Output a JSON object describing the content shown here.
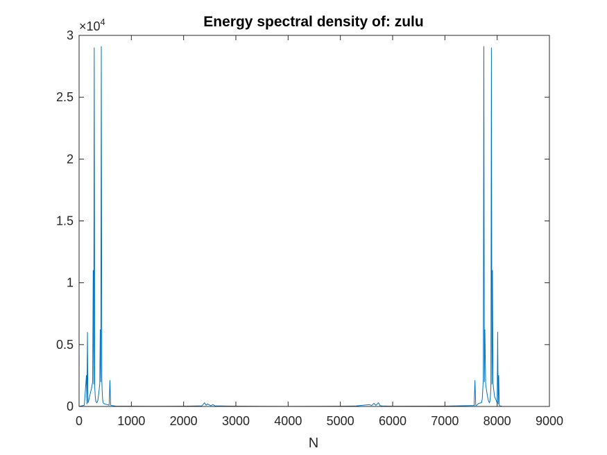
{
  "chart_data": {
    "type": "line",
    "title": "Energy spectral density of: zulu",
    "xlabel": "N",
    "ylabel": "",
    "xlim": [
      0,
      9000
    ],
    "ylim": [
      0,
      30000
    ],
    "xticks": [
      0,
      1000,
      2000,
      3000,
      4000,
      5000,
      6000,
      7000,
      8000,
      9000
    ],
    "xtick_labels": [
      "0",
      "1000",
      "2000",
      "3000",
      "4000",
      "5000",
      "6000",
      "7000",
      "8000",
      "9000"
    ],
    "yticks": [
      0,
      5000,
      10000,
      15000,
      20000,
      25000,
      30000
    ],
    "ytick_labels": [
      "0",
      "0.5",
      "1",
      "1.5",
      "2",
      "2.5",
      "3"
    ],
    "y_exponent_label": "×10",
    "y_exponent": "4",
    "grid": false,
    "line_color": "#0072bd",
    "series": [
      {
        "x": [
          0,
          100,
          140,
          150,
          160,
          170,
          180,
          200,
          240,
          260,
          270,
          280,
          290,
          300,
          310,
          320,
          340,
          360,
          380,
          395,
          405,
          415,
          425,
          435,
          440,
          450,
          460,
          470,
          490,
          540,
          575,
          590,
          605,
          620,
          700,
          1000,
          1500,
          2000,
          2350,
          2400,
          2430,
          2460,
          2520,
          2560,
          2600,
          2900,
          3500,
          4000,
          4500,
          5000,
          5300,
          5550,
          5600,
          5640,
          5680,
          5730,
          5760,
          5800,
          6000,
          7000,
          7560,
          7575,
          7590,
          7605,
          7620,
          7650,
          7700,
          7715,
          7725,
          7735,
          7745,
          7755,
          7765,
          7780,
          7800,
          7830,
          7850,
          7860,
          7870,
          7880,
          7890,
          7900,
          7910,
          7920,
          7930,
          7950,
          7990,
          8000,
          8010,
          8020,
          8030,
          8040,
          8060,
          8100,
          8192
        ],
        "y": [
          0,
          100,
          2500,
          200,
          6000,
          300,
          400,
          800,
          1500,
          2000,
          11000,
          1800,
          29000,
          1500,
          800,
          400,
          300,
          500,
          1200,
          1800,
          6200,
          2000,
          29100,
          2200,
          1400,
          600,
          300,
          250,
          200,
          150,
          100,
          2100,
          100,
          80,
          30,
          20,
          15,
          20,
          50,
          300,
          100,
          200,
          60,
          150,
          50,
          30,
          15,
          10,
          15,
          20,
          40,
          150,
          80,
          250,
          90,
          300,
          60,
          40,
          20,
          30,
          80,
          2100,
          100,
          80,
          150,
          250,
          300,
          600,
          1400,
          2200,
          29100,
          2000,
          6200,
          1800,
          1200,
          500,
          300,
          400,
          800,
          1500,
          29000,
          1800,
          11000,
          2000,
          1500,
          800,
          400,
          300,
          6000,
          200,
          2500,
          100,
          30,
          10,
          0
        ]
      }
    ]
  }
}
